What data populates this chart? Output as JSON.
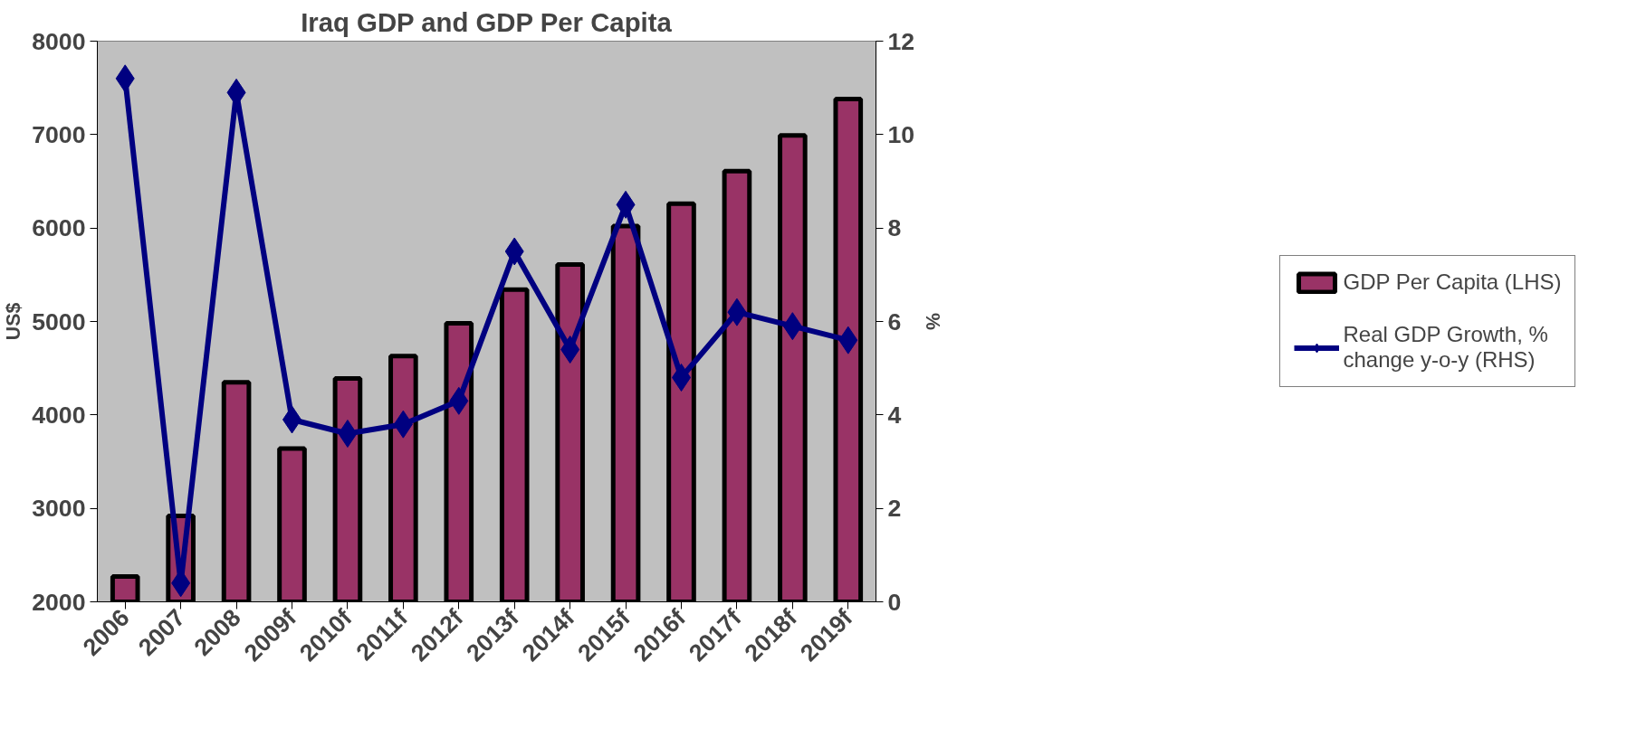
{
  "chart_data": {
    "type": "bar",
    "title": "Iraq GDP and GDP Per Capita",
    "categories": [
      "2006",
      "2007",
      "2008",
      "2009f",
      "2010f",
      "2011f",
      "2012f",
      "2013f",
      "2014f",
      "2015f",
      "2016f",
      "2017f",
      "2018f",
      "2019f"
    ],
    "ylabel": "US$",
    "y2label": "%",
    "ylim": [
      2000,
      8000
    ],
    "yticks": [
      2000,
      3000,
      4000,
      5000,
      6000,
      7000,
      8000
    ],
    "y2lim": [
      0,
      12
    ],
    "y2ticks": [
      0,
      2,
      4,
      6,
      8,
      10,
      12
    ],
    "legend": "right",
    "series": [
      {
        "name": "GDP Per Capita (LHS)",
        "color": "#993366",
        "values": [
          2270,
          2920,
          4350,
          3640,
          4390,
          4630,
          4980,
          5340,
          5610,
          6020,
          6260,
          6610,
          6990,
          7380
        ]
      },
      {
        "name": "Real GDP Growth, % change y-o-y (RHS)",
        "type": "line",
        "axis": "y2",
        "marker": "diamond",
        "color": "#000080",
        "values": [
          11.2,
          0.4,
          10.9,
          3.9,
          3.6,
          3.8,
          4.3,
          7.5,
          5.4,
          8.5,
          4.8,
          6.2,
          5.9,
          5.6
        ]
      }
    ]
  }
}
